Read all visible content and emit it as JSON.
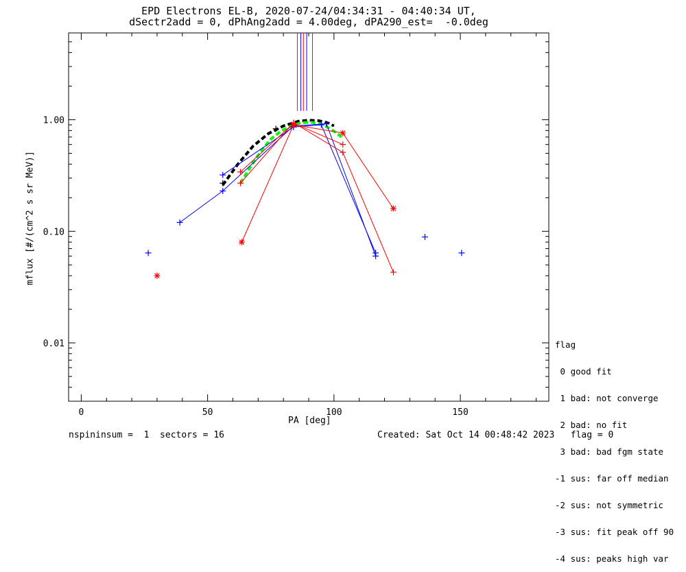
{
  "header": {
    "title_line1": "EPD Electrons EL-B, 2020-07-24/04:34:31 - 04:40:34 UT,",
    "title_line2": "dSectr2add = 0, dPhAng2add = 4.00deg, dPA290_est=  -0.0deg"
  },
  "footer": {
    "left": "nspininsum =  1  sectors = 16",
    "right": "Created: Sat Oct 14 00:48:42 2023   flag = 0"
  },
  "legend": {
    "title": "flag",
    "items": [
      " 0 good fit",
      " 1 bad: not converge",
      " 2 bad: no fit",
      " 3 bad: bad fgm state",
      "-1 sus: far off median",
      "-2 sus: not symmetric",
      "-3 sus: fit peak off 90",
      "-4 sus: peaks high var"
    ]
  },
  "colors": {
    "blue": "#0000ff",
    "red": "#ff0000",
    "black": "#000000",
    "green": "#00ff00"
  },
  "chart_data": {
    "type": "line",
    "xlabel": "PA [deg]",
    "ylabel": "mflux [#/(cm^2 s sr MeV)]",
    "xlim": [
      -5,
      185
    ],
    "ylim": [
      0.003,
      6.0
    ],
    "yscale": "log",
    "xticks": [
      0,
      50,
      100,
      150
    ],
    "xtick_labels": [
      "0",
      "50",
      "100",
      "150"
    ],
    "yticks": [
      0.01,
      0.1,
      1.0
    ],
    "ytick_labels": [
      "0.01",
      "0.10",
      "1.00"
    ],
    "series": [
      {
        "color": "#0000ff",
        "marker": "plus",
        "line": true,
        "points": [
          [
            39,
            0.12
          ],
          [
            56,
            0.23
          ],
          [
            84,
            0.88
          ],
          [
            97,
            0.92
          ],
          [
            116.5,
            0.06
          ]
        ]
      },
      {
        "color": "#0000ff",
        "marker": "plus",
        "line": true,
        "points": [
          [
            56,
            0.32
          ],
          [
            84,
            0.86
          ],
          [
            95,
            0.9
          ],
          [
            116.5,
            0.064
          ]
        ]
      },
      {
        "color": "#0000ff",
        "marker": "plus",
        "line": false,
        "points": [
          [
            26.5,
            0.064
          ],
          [
            136,
            0.089
          ],
          [
            150.5,
            0.064
          ]
        ]
      },
      {
        "color": "#ff0000",
        "marker": "plus",
        "line": true,
        "points": [
          [
            63,
            0.27
          ],
          [
            84,
            0.94
          ],
          [
            103.5,
            0.51
          ],
          [
            123.5,
            0.043
          ]
        ]
      },
      {
        "color": "#ff0000",
        "marker": "plus",
        "line": true,
        "points": [
          [
            63,
            0.34
          ],
          [
            84,
            0.93
          ],
          [
            103.5,
            0.6
          ]
        ]
      },
      {
        "color": "#ff0000",
        "marker": "asterisk",
        "line": true,
        "points": [
          [
            63.5,
            0.08
          ],
          [
            84,
            0.9
          ],
          [
            103.5,
            0.76
          ],
          [
            123.5,
            0.16
          ]
        ]
      },
      {
        "color": "#ff0000",
        "marker": "asterisk",
        "line": false,
        "points": [
          [
            30,
            0.04
          ]
        ]
      },
      {
        "color": "#000000",
        "marker": "plus",
        "line": false,
        "points": [
          [
            56,
            0.27
          ],
          [
            77,
            0.83
          ]
        ]
      }
    ],
    "fits": [
      {
        "color": "#000000",
        "dash": "dashed",
        "points": [
          [
            56,
            0.26
          ],
          [
            62,
            0.4
          ],
          [
            68,
            0.58
          ],
          [
            74,
            0.75
          ],
          [
            80,
            0.88
          ],
          [
            86,
            0.97
          ],
          [
            90,
            0.99
          ],
          [
            94,
            0.98
          ],
          [
            98,
            0.93
          ],
          [
            100,
            0.88
          ]
        ]
      },
      {
        "color": "#00ff00",
        "dash": "dashed",
        "points": [
          [
            63,
            0.27
          ],
          [
            67,
            0.38
          ],
          [
            71,
            0.52
          ],
          [
            75,
            0.67
          ],
          [
            79,
            0.79
          ],
          [
            83,
            0.88
          ],
          [
            87,
            0.94
          ],
          [
            91,
            0.95
          ],
          [
            95,
            0.91
          ],
          [
            99,
            0.82
          ],
          [
            103,
            0.7
          ]
        ]
      }
    ],
    "vertical_markers": [
      {
        "x": 85.5,
        "color": "#ff0000"
      },
      {
        "x": 86.9,
        "color": "#0000ff"
      },
      {
        "x": 87.9,
        "color": "#ff0000"
      },
      {
        "x": 89.2,
        "color": "#0000ff"
      },
      {
        "x": 91.5,
        "color": "#ff0000"
      }
    ],
    "vertical_marker_range": [
      1.2,
      6.0
    ]
  }
}
